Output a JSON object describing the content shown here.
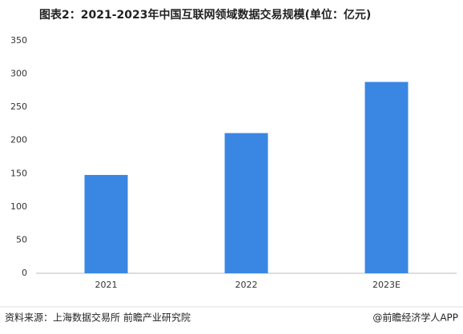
{
  "chart_data": {
    "type": "bar",
    "title": "图表2：2021-2023年中国互联网领域数据交易规模(单位：亿元)",
    "categories": [
      "2021",
      "2022",
      "2023E"
    ],
    "values": [
      148,
      211,
      288
    ],
    "color": "#3a87e3",
    "ylim": [
      0,
      350
    ],
    "yticks": [
      0,
      50,
      100,
      150,
      200,
      250,
      300,
      350
    ],
    "grid": false,
    "source": "资料来源：上海数据交易所 前瞻产业研究院",
    "credit": "@前瞻经济学人APP"
  }
}
